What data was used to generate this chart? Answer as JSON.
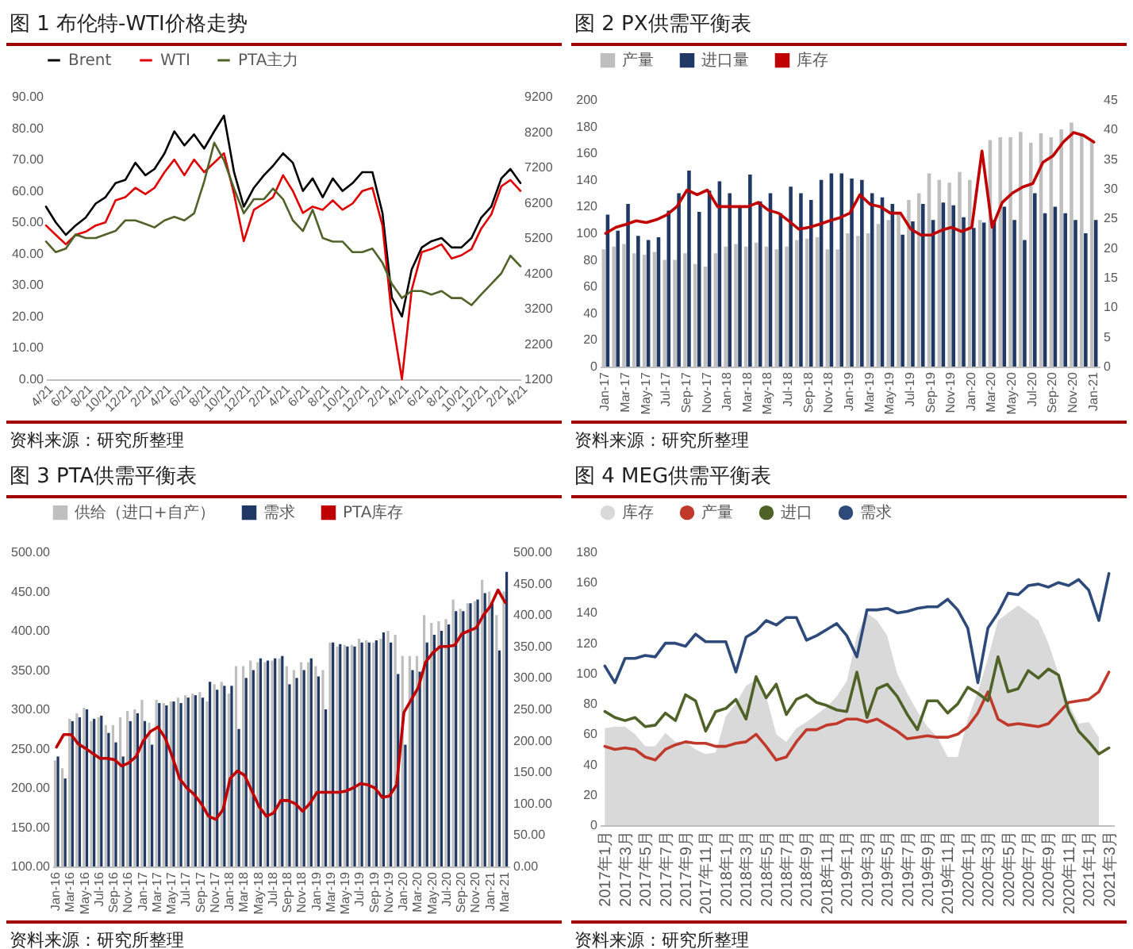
{
  "chart_data": [
    {
      "type": "line",
      "title": "图 1 布伦特-WTI价格走势",
      "annotations": [
        "资料来源：研究所整理"
      ],
      "legend": "top",
      "x": [
        "2017-04-21",
        "2017-05-21",
        "2017-06-21",
        "2017-07-21",
        "2017-08-21",
        "2017-09-21",
        "2017-10-21",
        "2017-11-21",
        "2017-12-21",
        "2018-01-21",
        "2018-02-21",
        "2018-03-21",
        "2018-04-21",
        "2018-05-21",
        "2018-06-21",
        "2018-07-21",
        "2018-08-21",
        "2018-09-21",
        "2018-10-21",
        "2018-11-21",
        "2018-12-21",
        "2019-01-21",
        "2019-02-21",
        "2019-03-21",
        "2019-04-21",
        "2019-05-21",
        "2019-06-21",
        "2019-07-21",
        "2019-08-21",
        "2019-09-21",
        "2019-10-21",
        "2019-11-21",
        "2019-12-21",
        "2020-01-21",
        "2020-02-21",
        "2020-03-21",
        "2020-04-21",
        "2020-05-21",
        "2020-06-21",
        "2020-07-21",
        "2020-08-21",
        "2020-09-21",
        "2020-10-21",
        "2020-11-21",
        "2020-12-21",
        "2021-01-21",
        "2021-02-21",
        "2021-03-21",
        "2021-04-21"
      ],
      "xlim": [
        "2017-04-21",
        "2021-04-21"
      ],
      "xticks": [
        {
          "value": "2017-04-21",
          "label": "4/21"
        },
        {
          "value": "2017-06-21",
          "label": "6/21"
        },
        {
          "value": "2017-08-21",
          "label": "8/21"
        },
        {
          "value": "2017-10-21",
          "label": "10/21"
        },
        {
          "value": "2017-12-21",
          "label": "12/21"
        },
        {
          "value": "2018-02-21",
          "label": "2/21"
        },
        {
          "value": "2018-04-21",
          "label": "4/21"
        },
        {
          "value": "2018-06-21",
          "label": "6/21"
        },
        {
          "value": "2018-08-21",
          "label": "8/21"
        },
        {
          "value": "2018-10-21",
          "label": "10/21"
        },
        {
          "value": "2018-12-21",
          "label": "12/21"
        },
        {
          "value": "2019-02-21",
          "label": "2/21"
        },
        {
          "value": "2019-04-21",
          "label": "4/21"
        },
        {
          "value": "2019-06-21",
          "label": "6/21"
        },
        {
          "value": "2019-08-21",
          "label": "8/21"
        },
        {
          "value": "2019-10-21",
          "label": "10/21"
        },
        {
          "value": "2019-12-21",
          "label": "12/21"
        },
        {
          "value": "2020-02-21",
          "label": "2/21"
        },
        {
          "value": "2020-04-21",
          "label": "4/21"
        },
        {
          "value": "2020-06-21",
          "label": "6/21"
        },
        {
          "value": "2020-08-21",
          "label": "8/21"
        },
        {
          "value": "2020-10-21",
          "label": "10/21"
        },
        {
          "value": "2020-12-21",
          "label": "12/21"
        },
        {
          "value": "2021-02-21",
          "label": "2/21"
        },
        {
          "value": "2021-04-21",
          "label": "4/21"
        }
      ],
      "ylim": [
        0,
        90
      ],
      "yticks": [
        {
          "value": 0,
          "label": "0.00"
        },
        {
          "value": 10,
          "label": "10.00"
        },
        {
          "value": 20,
          "label": "20.00"
        },
        {
          "value": 30,
          "label": "30.00"
        },
        {
          "value": 40,
          "label": "40.00"
        },
        {
          "value": 50,
          "label": "50.00"
        },
        {
          "value": 60,
          "label": "60.00"
        },
        {
          "value": 70,
          "label": "70.00"
        },
        {
          "value": 80,
          "label": "80.00"
        },
        {
          "value": 90,
          "label": "90.00"
        }
      ],
      "y2lim": [
        1200,
        9200
      ],
      "y2ticks": [
        1200,
        2200,
        3200,
        4200,
        5200,
        6200,
        7200,
        8200,
        9200
      ],
      "series": [
        {
          "name": "Brent",
          "color": "#000000",
          "values": [
            55,
            50,
            46,
            49,
            51.5,
            56,
            58,
            62.5,
            63.5,
            69,
            65,
            67,
            72,
            79,
            74.5,
            78,
            73.5,
            79,
            84,
            66,
            55,
            61,
            65,
            68,
            72,
            69,
            60,
            64,
            58,
            64,
            60,
            62.5,
            66,
            66,
            53,
            26,
            20,
            35,
            42,
            44,
            45,
            42,
            42,
            45,
            51.5,
            55,
            64,
            67,
            62.5
          ]
        },
        {
          "name": "WTI",
          "color": "#e00000",
          "values": [
            49,
            46,
            43,
            46,
            47,
            49,
            50,
            57,
            58,
            61,
            59,
            61,
            66,
            70,
            65,
            70,
            66,
            69,
            72,
            59,
            44,
            54,
            56,
            58,
            65,
            60,
            53,
            55,
            54,
            57,
            54,
            56,
            60,
            61,
            49,
            20,
            0,
            28.5,
            40.5,
            41.5,
            43,
            38.5,
            39.5,
            41.5,
            48,
            52.5,
            61.5,
            63.5,
            60
          ]
        },
        {
          "name": "PTA主力",
          "color": "#4f6228",
          "axis": "y2",
          "values": [
            5100,
            4800,
            4900,
            5300,
            5200,
            5200,
            5300,
            5400,
            5700,
            5700,
            5600,
            5500,
            5700,
            5800,
            5700,
            5900,
            6800,
            7900,
            7400,
            6600,
            5900,
            6300,
            6300,
            6600,
            6300,
            5700,
            5400,
            6000,
            5200,
            5100,
            5100,
            4800,
            4800,
            4900,
            4500,
            3900,
            3500,
            3700,
            3700,
            3600,
            3700,
            3500,
            3500,
            3300,
            3600,
            3900,
            4200,
            4700,
            4400
          ]
        }
      ]
    },
    {
      "type": "bar",
      "title": "图 2 PX供需平衡表",
      "annotations": [
        "资料来源：研究所整理"
      ],
      "legend": "top",
      "categories": [
        "Jan-17",
        null,
        "Mar-17",
        null,
        "May-17",
        null,
        "Jul-17",
        null,
        "Sep-17",
        null,
        "Nov-17",
        null,
        "Jan-18",
        null,
        "Mar-18",
        null,
        "May-18",
        null,
        "Jul-18",
        null,
        "Sep-18",
        null,
        "Nov-18",
        null,
        "Jan-19",
        null,
        "Mar-19",
        null,
        "May-19",
        null,
        "Jul-19",
        null,
        "Sep-19",
        null,
        "Nov-19",
        null,
        "Jan-20",
        null,
        "Mar-20",
        null,
        "May-20",
        null,
        "Jul-20",
        null,
        "Sep-20",
        null,
        "Nov-20",
        null,
        "Jan-21"
      ],
      "ylim": [
        0,
        200
      ],
      "yticks": [
        0,
        20,
        40,
        60,
        80,
        100,
        120,
        140,
        160,
        180,
        200
      ],
      "y2lim": [
        0,
        45
      ],
      "y2ticks": [
        0,
        5,
        10,
        15,
        20,
        25,
        30,
        35,
        40,
        45
      ],
      "series": [
        {
          "name": "产量",
          "color": "#bfbfbf",
          "values": [
            88,
            90,
            92,
            85,
            84,
            86,
            80,
            80,
            85,
            77,
            75,
            85,
            90,
            92,
            90,
            93,
            90,
            88,
            90,
            95,
            96,
            97,
            88,
            88,
            100,
            98,
            100,
            107,
            110,
            115,
            125,
            130,
            145,
            140,
            138,
            146,
            140,
            110,
            170,
            172,
            172,
            176,
            168,
            175,
            172,
            178,
            183,
            175,
            170
          ]
        },
        {
          "name": "进口量",
          "color": "#1f3864",
          "values": [
            114,
            102,
            122,
            98,
            95,
            97,
            117,
            130,
            147,
            116,
            132,
            139,
            130,
            120,
            144,
            124,
            130,
            115,
            135,
            130,
            125,
            140,
            145,
            145,
            141,
            140,
            130,
            127,
            122,
            99,
            109,
            122,
            110,
            123,
            121,
            112,
            104,
            108,
            110,
            120,
            110,
            95,
            130,
            115,
            120,
            115,
            110,
            100,
            110
          ]
        },
        {
          "name": "库存",
          "color": "#c00000",
          "type": "line",
          "axis": "y2",
          "values": [
            22.5,
            23.5,
            24,
            24.6,
            24.3,
            24.8,
            25.6,
            27,
            29.8,
            29,
            29.8,
            27,
            27,
            27,
            27,
            27.7,
            26.4,
            25.9,
            24.6,
            23.2,
            23.5,
            24,
            24.6,
            25.1,
            25.9,
            29,
            27.4,
            27,
            25.9,
            25.9,
            23.2,
            22.2,
            22.2,
            23,
            23.5,
            22.8,
            23.5,
            36.4,
            23.5,
            27.7,
            29.3,
            30.3,
            30.9,
            34.5,
            35.6,
            37.9,
            39.5,
            39,
            37.9
          ]
        }
      ]
    },
    {
      "type": "bar",
      "title": "图 3 PTA供需平衡表",
      "annotations": [
        "资料来源：研究所整理"
      ],
      "legend": "top",
      "categories": [
        "Jan-16",
        null,
        "Mar-16",
        null,
        "May-16",
        null,
        "Jul-16",
        null,
        "Sep-16",
        null,
        "Nov-16",
        null,
        "Jan-17",
        null,
        "Mar-17",
        null,
        "May-17",
        null,
        "Jul-17",
        null,
        "Sep-17",
        null,
        "Nov-17",
        null,
        "Jan-18",
        null,
        "Mar-18",
        null,
        "May-18",
        null,
        "Jul-18",
        null,
        "Sep-18",
        null,
        "Nov-18",
        null,
        "Jan-19",
        null,
        "Mar-19",
        null,
        "May-19",
        null,
        "Jul-19",
        null,
        "Sep-19",
        null,
        "Nov-19",
        null,
        "Jan-20",
        null,
        "Mar-20",
        null,
        "May-20",
        null,
        "Jul-20",
        null,
        "Sep-20",
        null,
        "Nov-20",
        null,
        "Jan-21",
        null,
        "Mar-21"
      ],
      "ylim": [
        100,
        500
      ],
      "yticks": [
        {
          "value": 100,
          "label": "100.00"
        },
        {
          "value": 150,
          "label": "150.00"
        },
        {
          "value": 200,
          "label": "200.00"
        },
        {
          "value": 250,
          "label": "250.00"
        },
        {
          "value": 300,
          "label": "300.00"
        },
        {
          "value": 350,
          "label": "350.00"
        },
        {
          "value": 400,
          "label": "400.00"
        },
        {
          "value": 450,
          "label": "450.00"
        },
        {
          "value": 500,
          "label": "500.00"
        }
      ],
      "y2lim": [
        0,
        500
      ],
      "y2ticks": [
        {
          "value": 0,
          "label": "0.00"
        },
        {
          "value": 50,
          "label": "50.00"
        },
        {
          "value": 100,
          "label": "100.00"
        },
        {
          "value": 150,
          "label": "150.00"
        },
        {
          "value": 200,
          "label": "200.00"
        },
        {
          "value": 250,
          "label": "250.00"
        },
        {
          "value": 300,
          "label": "300.00"
        },
        {
          "value": 350,
          "label": "350.00"
        },
        {
          "value": 400,
          "label": "400.00"
        },
        {
          "value": 450,
          "label": "450.00"
        },
        {
          "value": 500,
          "label": "500.00"
        }
      ],
      "series": [
        {
          "name": "供给（进口+自产）",
          "color": "#bfbfbf",
          "values": [
            235,
            225,
            288,
            295,
            302,
            285,
            290,
            280,
            280,
            290,
            298,
            300,
            312,
            283,
            312,
            308,
            310,
            315,
            318,
            320,
            322,
            310,
            332,
            335,
            320,
            355,
            355,
            362,
            360,
            360,
            362,
            365,
            355,
            350,
            360,
            360,
            355,
            350,
            385,
            380,
            382,
            382,
            390,
            388,
            385,
            390,
            400,
            395,
            368,
            368,
            368,
            420,
            410,
            412,
            415,
            440,
            428,
            435,
            438,
            465,
            450,
            420,
            450
          ]
        },
        {
          "name": "需求",
          "color": "#1f3864",
          "values": [
            240,
            212,
            285,
            290,
            300,
            288,
            292,
            270,
            258,
            240,
            285,
            295,
            285,
            255,
            308,
            305,
            310,
            308,
            315,
            318,
            315,
            335,
            325,
            330,
            330,
            275,
            340,
            350,
            365,
            362,
            365,
            368,
            332,
            340,
            350,
            365,
            342,
            300,
            385,
            383,
            380,
            380,
            385,
            385,
            388,
            398,
            385,
            345,
            255,
            350,
            348,
            385,
            395,
            400,
            408,
            425,
            425,
            435,
            440,
            448,
            435,
            375,
            475
          ]
        },
        {
          "name": "PTA库存",
          "color": "#c00000",
          "type": "line",
          "axis": "y2",
          "values": [
            190,
            210,
            210,
            195,
            188,
            180,
            172,
            172,
            170,
            160,
            165,
            175,
            200,
            215,
            222,
            205,
            175,
            140,
            125,
            115,
            100,
            80,
            75,
            90,
            140,
            152,
            145,
            120,
            95,
            80,
            85,
            105,
            105,
            100,
            88,
            100,
            118,
            118,
            118,
            118,
            120,
            125,
            132,
            130,
            125,
            110,
            112,
            130,
            245,
            265,
            285,
            325,
            340,
            350,
            350,
            352,
            370,
            375,
            380,
            400,
            415,
            440,
            420
          ]
        }
      ]
    },
    {
      "type": "line",
      "title": "图 4 MEG供需平衡表",
      "annotations": [
        "资料来源：研究所整理"
      ],
      "legend": "top",
      "categories": [
        "2017年1月",
        null,
        "2017年3月",
        null,
        "2017年5月",
        null,
        "2017年7月",
        null,
        "2017年9月",
        null,
        "2017年11月",
        null,
        "2018年1月",
        null,
        "2018年3月",
        null,
        "2018年5月",
        null,
        "2018年7月",
        null,
        "2018年9月",
        null,
        "2018年11月",
        null,
        "2019年1月",
        null,
        "2019年3月",
        null,
        "2019年5月",
        null,
        "2019年7月",
        null,
        "2019年9月",
        null,
        "2019年11月",
        null,
        "2020年1月",
        null,
        "2020年3月",
        null,
        "2020年5月",
        null,
        "2020年7月",
        null,
        "2020年9月",
        null,
        "2020年11月",
        null,
        "2021年1月",
        null,
        "2021年3月"
      ],
      "ylim": [
        0,
        180
      ],
      "yticks": [
        0,
        20,
        40,
        60,
        80,
        100,
        120,
        140,
        160,
        180
      ],
      "series": [
        {
          "name": "库存",
          "color": "#d9d9d9",
          "type": "area",
          "values": [
            64,
            65,
            65,
            60,
            52,
            52,
            61,
            55,
            55,
            50,
            47,
            48,
            72,
            80,
            92,
            96,
            85,
            60,
            55,
            64,
            68,
            73,
            78,
            85,
            95,
            125,
            140,
            135,
            125,
            100,
            87,
            75,
            65,
            58,
            45,
            45,
            70,
            88,
            110,
            135,
            140,
            145,
            140,
            135,
            120,
            100,
            80,
            67,
            68,
            58,
            null
          ]
        },
        {
          "name": "产量",
          "color": "#c0392b",
          "values": [
            52,
            50,
            51,
            50,
            45,
            43,
            50,
            53,
            55,
            54,
            54,
            52,
            52,
            54,
            55,
            60,
            52,
            43,
            45,
            55,
            63,
            63,
            66,
            67,
            70,
            70,
            68,
            70,
            66,
            62,
            57,
            58,
            59,
            58,
            58,
            60,
            65,
            74,
            88,
            70,
            66,
            67,
            66,
            65,
            67,
            74,
            81,
            82,
            83,
            88,
            101
          ]
        },
        {
          "name": "进口",
          "color": "#4f6228",
          "values": [
            75,
            71,
            69,
            71,
            65,
            66,
            74,
            69,
            86,
            82,
            62,
            75,
            77,
            83,
            70,
            98,
            84,
            93,
            73,
            83,
            86,
            81,
            79,
            76,
            75,
            101,
            71,
            90,
            93,
            85,
            73,
            63,
            82,
            82,
            74,
            80,
            91,
            87,
            82,
            111,
            88,
            90,
            102,
            97,
            103,
            99,
            75,
            62,
            55,
            47,
            51
          ]
        },
        {
          "name": "需求",
          "color": "#2e4a7a",
          "values": [
            105,
            94,
            110,
            110,
            112,
            111,
            120,
            120,
            118,
            126,
            121,
            121,
            121,
            101,
            124,
            128,
            135,
            132,
            137,
            137,
            122,
            125,
            129,
            133,
            125,
            111,
            142,
            142,
            143,
            140,
            141,
            143,
            144,
            144,
            149,
            142,
            130,
            94,
            130,
            140,
            153,
            152,
            158,
            159,
            157,
            160,
            158,
            162,
            155,
            135,
            166
          ]
        }
      ]
    }
  ]
}
